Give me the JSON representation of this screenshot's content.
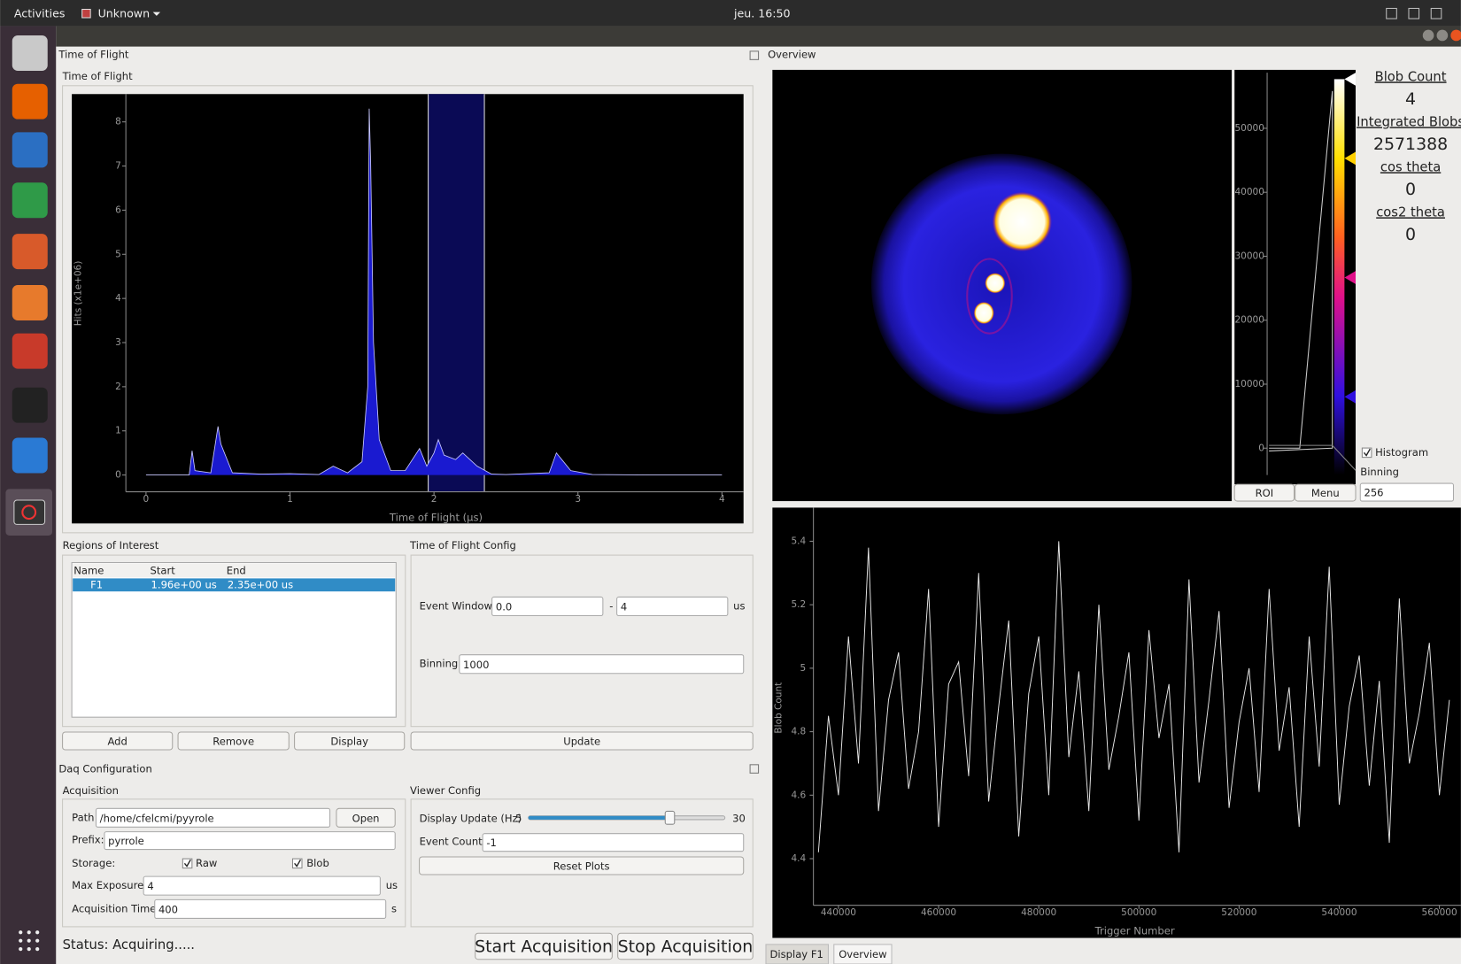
{
  "topbar": {
    "activities": "Activities",
    "window": "Unknown",
    "clock": "jeu. 16:50"
  },
  "tof_dock": {
    "title": "Time of Flight",
    "group": "Time of Flight"
  },
  "roi": {
    "title": "Regions of Interest",
    "columns": [
      "Name",
      "Start",
      "End"
    ],
    "rows": [
      [
        "F1",
        "1.96e+00 us",
        "2.35e+00 us"
      ]
    ],
    "buttons": [
      "Add",
      "Remove",
      "Display"
    ]
  },
  "tof_config": {
    "title": "Time of Flight Config",
    "event_window_label": "Event Window:",
    "event_window_start": "0.0",
    "dash": "-",
    "event_window_end": "4",
    "unit": "us",
    "binning_label": "Binning",
    "binning": "1000",
    "update": "Update"
  },
  "daq_dock": {
    "title": "Daq Configuration"
  },
  "acquisition": {
    "title": "Acquisition",
    "path_label": "Path",
    "path": "/home/cfelcmi/pyyrole",
    "open": "Open",
    "prefix_label": "Prefix:",
    "prefix": "pyrrole",
    "storage_label": "Storage:",
    "raw": "Raw",
    "blob": "Blob",
    "max_exposure_label": "Max Exposure:",
    "max_exposure": "4",
    "max_exposure_unit": "us",
    "acq_time_label": "Acquisition Time:",
    "acq_time": "400",
    "acq_time_unit": "s"
  },
  "viewer": {
    "title": "Viewer Config",
    "update_label": "Display Update (Hz)",
    "slider_min": 5,
    "slider_max": 30,
    "slider_value": 23,
    "event_count_label": "Event Count:",
    "event_count": "-1",
    "reset": "Reset Plots"
  },
  "status": {
    "text": "Status: Acquiring.....",
    "start": "Start Acquisition",
    "stop": "Stop Acquisition"
  },
  "overview": {
    "title": "Overview",
    "stats": [
      {
        "label": "Blob Count",
        "value": 4
      },
      {
        "label": "Integrated Blobs",
        "value": 2571388
      },
      {
        "label": "cos theta",
        "value": 0
      },
      {
        "label": "cos2 theta",
        "value": 0
      }
    ],
    "histogram_check": "Histogram",
    "binning_label": "Binning",
    "binning": "256",
    "roi_button": "ROI",
    "menu_button": "Menu"
  },
  "tabs": [
    "Display F1",
    "Overview"
  ],
  "chart_data": [
    {
      "type": "area",
      "x_label": "Time of Flight (µs)",
      "y_label": "Hits (x1e+06)",
      "xlim": [
        -0.14,
        4.15
      ],
      "ylim": [
        -0.38,
        8.63
      ],
      "xticks": [
        0,
        1,
        2,
        3,
        4
      ],
      "yticks": [
        0,
        1,
        2,
        3,
        4,
        5,
        6,
        7,
        8
      ],
      "color": "#1a1ad0",
      "region": [
        1.96,
        2.35
      ],
      "x": [
        0,
        0.3,
        0.32,
        0.34,
        0.45,
        0.5,
        0.52,
        0.6,
        0.8,
        1.0,
        1.2,
        1.3,
        1.4,
        1.5,
        1.54,
        1.55,
        1.56,
        1.58,
        1.62,
        1.7,
        1.8,
        1.9,
        1.95,
        2.0,
        2.03,
        2.07,
        2.15,
        2.2,
        2.3,
        2.4,
        2.5,
        2.8,
        2.85,
        2.95,
        3.1,
        3.5,
        4.0
      ],
      "values": [
        0,
        0,
        0.55,
        0.1,
        0.05,
        1.1,
        0.7,
        0.05,
        0.02,
        0.03,
        0.01,
        0.2,
        0.05,
        0.3,
        2.0,
        8.3,
        7.1,
        3.0,
        0.8,
        0.1,
        0.1,
        0.6,
        0.2,
        0.5,
        0.8,
        0.45,
        0.35,
        0.5,
        0.2,
        0.02,
        0.01,
        0.05,
        0.5,
        0.1,
        0.01,
        0,
        0
      ]
    },
    {
      "type": "line",
      "x_label": "Trigger Number",
      "y_label": "Blob Count",
      "xlim": [
        435000,
        564300
      ],
      "ylim": [
        4.253,
        5.506
      ],
      "xticks": [
        440000,
        460000,
        480000,
        500000,
        520000,
        540000,
        560000
      ],
      "yticks": [
        4.4,
        4.6,
        4.8,
        5,
        5.2,
        5.4
      ],
      "color": "#e8e8e8",
      "x": [
        436000,
        438000,
        440000,
        442000,
        444000,
        446000,
        448000,
        450000,
        452000,
        454000,
        456000,
        458000,
        460000,
        462000,
        464000,
        466000,
        468000,
        470000,
        472000,
        474000,
        476000,
        478000,
        480000,
        482000,
        484000,
        486000,
        488000,
        490000,
        492000,
        494000,
        496000,
        498000,
        500000,
        502000,
        504000,
        506000,
        508000,
        510000,
        512000,
        514000,
        516000,
        518000,
        520000,
        522000,
        524000,
        526000,
        528000,
        530000,
        532000,
        534000,
        536000,
        538000,
        540000,
        542000,
        544000,
        546000,
        548000,
        550000,
        552000,
        554000,
        556000,
        558000,
        560000,
        562000
      ],
      "values": [
        4.42,
        4.85,
        4.6,
        5.1,
        4.7,
        5.38,
        4.55,
        4.9,
        5.05,
        4.62,
        4.8,
        5.25,
        4.5,
        4.95,
        5.02,
        4.66,
        5.3,
        4.58,
        4.88,
        5.15,
        4.47,
        4.92,
        5.1,
        4.6,
        5.4,
        4.72,
        4.99,
        4.55,
        5.2,
        4.68,
        4.85,
        5.05,
        4.52,
        5.12,
        4.78,
        4.95,
        4.42,
        5.28,
        4.64,
        4.9,
        5.18,
        4.56,
        4.83,
        5.0,
        4.61,
        5.25,
        4.74,
        4.94,
        4.5,
        5.1,
        4.69,
        5.32,
        4.57,
        4.88,
        5.04,
        4.63,
        4.96,
        4.45,
        5.22,
        4.7,
        4.86,
        5.08,
        4.6,
        4.9
      ]
    },
    {
      "type": "colorbar",
      "ylim": [
        -4200,
        58700
      ],
      "yticks": [
        0,
        10000,
        20000,
        30000,
        40000,
        50000
      ]
    }
  ]
}
